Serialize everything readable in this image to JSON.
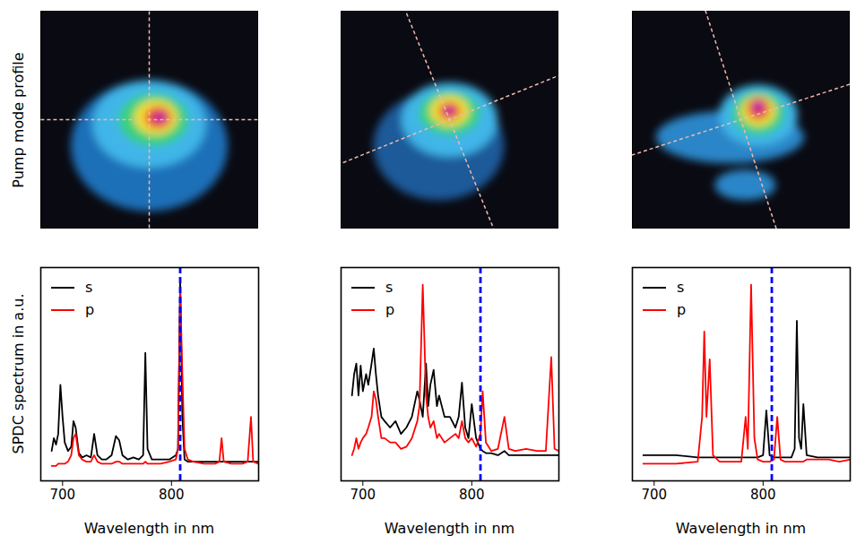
{
  "image_row_label": "Pump mode profile",
  "chart_data": [
    {
      "type": "line",
      "x_label": "Wavelength in nm",
      "y_label": "SPDC spectrum in a.u.",
      "xlim": [
        680,
        880
      ],
      "xticks": [
        700,
        800
      ],
      "ylim": [
        0,
        1
      ],
      "tick_labels": "x",
      "legend": "upper left",
      "vline": {
        "x": 808,
        "color": "#0000ff",
        "line_style": "dashed"
      },
      "x": [
        690,
        692,
        694,
        696,
        698,
        700,
        702,
        705,
        708,
        710,
        712,
        715,
        718,
        722,
        726,
        729,
        732,
        736,
        740,
        745,
        749,
        752,
        755,
        760,
        765,
        770,
        774,
        776,
        778,
        782,
        790,
        798,
        804,
        806,
        808,
        810,
        812,
        815,
        820,
        830,
        840,
        844,
        846,
        848,
        855,
        865,
        870,
        873,
        875,
        880
      ],
      "series": [
        {
          "name": "s",
          "color": "#000000",
          "values": [
            0.14,
            0.2,
            0.17,
            0.22,
            0.45,
            0.3,
            0.18,
            0.14,
            0.16,
            0.28,
            0.25,
            0.13,
            0.11,
            0.12,
            0.11,
            0.22,
            0.12,
            0.1,
            0.1,
            0.12,
            0.21,
            0.19,
            0.12,
            0.1,
            0.11,
            0.1,
            0.12,
            0.6,
            0.15,
            0.1,
            0.1,
            0.1,
            0.12,
            0.15,
            0.95,
            0.3,
            0.1,
            0.09,
            0.09,
            0.09,
            0.09,
            0.09,
            0.09,
            0.09,
            0.09,
            0.09,
            0.09,
            0.09,
            0.09,
            0.09
          ]
        },
        {
          "name": "p",
          "color": "#ff0000",
          "values": [
            0.07,
            0.07,
            0.07,
            0.08,
            0.08,
            0.08,
            0.08,
            0.09,
            0.12,
            0.2,
            0.22,
            0.12,
            0.1,
            0.09,
            0.09,
            0.12,
            0.09,
            0.08,
            0.08,
            0.08,
            0.09,
            0.09,
            0.08,
            0.08,
            0.08,
            0.08,
            0.08,
            0.09,
            0.08,
            0.08,
            0.08,
            0.09,
            0.1,
            0.15,
            0.9,
            0.5,
            0.15,
            0.1,
            0.09,
            0.08,
            0.08,
            0.09,
            0.2,
            0.09,
            0.08,
            0.08,
            0.09,
            0.3,
            0.09,
            0.08
          ]
        }
      ]
    },
    {
      "type": "line",
      "x_label": "Wavelength in nm",
      "xlim": [
        680,
        880
      ],
      "xticks": [
        700,
        800
      ],
      "ylim": [
        0,
        1
      ],
      "tick_labels": "x",
      "legend": "upper left",
      "vline": {
        "x": 808,
        "color": "#0000ff",
        "line_style": "dashed"
      },
      "x": [
        690,
        692,
        694,
        696,
        698,
        700,
        703,
        705,
        708,
        710,
        712,
        714,
        717,
        720,
        725,
        730,
        735,
        740,
        745,
        750,
        752,
        755,
        758,
        760,
        762,
        765,
        768,
        770,
        775,
        780,
        785,
        788,
        791,
        794,
        797,
        800,
        804,
        808,
        810,
        813,
        818,
        824,
        830,
        834,
        840,
        850,
        860,
        868,
        873,
        876,
        880
      ],
      "series": [
        {
          "name": "s",
          "color": "#000000",
          "values": [
            0.4,
            0.5,
            0.55,
            0.4,
            0.54,
            0.42,
            0.5,
            0.45,
            0.55,
            0.62,
            0.5,
            0.4,
            0.3,
            0.28,
            0.25,
            0.28,
            0.22,
            0.25,
            0.3,
            0.42,
            0.38,
            0.3,
            0.55,
            0.35,
            0.45,
            0.52,
            0.35,
            0.4,
            0.3,
            0.3,
            0.25,
            0.3,
            0.46,
            0.25,
            0.2,
            0.36,
            0.2,
            0.15,
            0.14,
            0.13,
            0.13,
            0.12,
            0.14,
            0.12,
            0.12,
            0.12,
            0.12,
            0.12,
            0.12,
            0.12,
            0.12
          ]
        },
        {
          "name": "p",
          "color": "#ff0000",
          "values": [
            0.12,
            0.15,
            0.2,
            0.15,
            0.18,
            0.2,
            0.22,
            0.25,
            0.3,
            0.42,
            0.38,
            0.3,
            0.2,
            0.2,
            0.18,
            0.18,
            0.15,
            0.16,
            0.2,
            0.28,
            0.35,
            0.92,
            0.4,
            0.3,
            0.25,
            0.28,
            0.2,
            0.22,
            0.18,
            0.2,
            0.22,
            0.2,
            0.28,
            0.2,
            0.18,
            0.2,
            0.16,
            0.22,
            0.42,
            0.18,
            0.14,
            0.15,
            0.3,
            0.15,
            0.14,
            0.15,
            0.14,
            0.14,
            0.58,
            0.15,
            0.14
          ]
        }
      ]
    },
    {
      "type": "line",
      "x_label": "Wavelength in nm",
      "xlim": [
        680,
        880
      ],
      "xticks": [
        700,
        800
      ],
      "ylim": [
        0,
        1
      ],
      "tick_labels": "x",
      "legend": "upper left",
      "vline": {
        "x": 808,
        "color": "#0000ff",
        "line_style": "dashed"
      },
      "x": [
        690,
        700,
        720,
        740,
        744,
        746,
        748,
        751,
        754,
        760,
        770,
        780,
        784,
        786,
        789,
        792,
        795,
        800,
        803,
        806,
        810,
        813,
        816,
        820,
        826,
        829,
        831,
        833,
        835,
        837,
        840,
        850,
        860,
        870,
        880
      ],
      "series": [
        {
          "name": "s",
          "color": "#000000",
          "values": [
            0.12,
            0.12,
            0.12,
            0.11,
            0.11,
            0.11,
            0.11,
            0.11,
            0.11,
            0.11,
            0.11,
            0.11,
            0.11,
            0.11,
            0.11,
            0.11,
            0.11,
            0.12,
            0.33,
            0.12,
            0.11,
            0.11,
            0.11,
            0.11,
            0.11,
            0.15,
            0.75,
            0.2,
            0.15,
            0.36,
            0.12,
            0.11,
            0.11,
            0.11,
            0.11
          ]
        },
        {
          "name": "p",
          "color": "#ff0000",
          "values": [
            0.08,
            0.08,
            0.08,
            0.09,
            0.3,
            0.7,
            0.3,
            0.57,
            0.12,
            0.09,
            0.09,
            0.09,
            0.3,
            0.15,
            0.92,
            0.2,
            0.1,
            0.09,
            0.09,
            0.09,
            0.1,
            0.3,
            0.1,
            0.09,
            0.09,
            0.09,
            0.09,
            0.09,
            0.09,
            0.09,
            0.1,
            0.1,
            0.1,
            0.09,
            0.1
          ]
        }
      ]
    }
  ]
}
